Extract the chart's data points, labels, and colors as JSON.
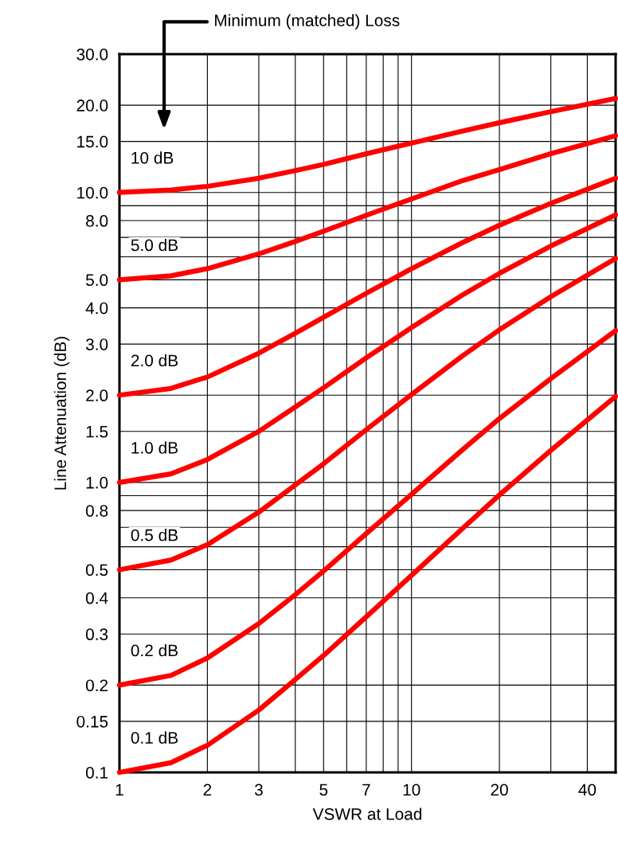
{
  "chart_data": {
    "type": "line",
    "xlabel": "VSWR at Load",
    "ylabel": "Line Attenuation (dB)",
    "annotations": [
      "Minimum (matched) Loss"
    ],
    "x": [
      1,
      1.5,
      2,
      3,
      4,
      5,
      7,
      10,
      15,
      20,
      30,
      50
    ],
    "series": [
      {
        "name": "10 dB",
        "color": "#ff0000",
        "values": [
          10,
          10.2,
          10.5,
          11.2,
          11.9,
          12.5,
          13.6,
          14.8,
          16.3,
          17.4,
          19.0,
          21.1
        ]
      },
      {
        "name": "5.0 dB",
        "color": "#ff0000",
        "values": [
          5,
          5.16,
          5.46,
          6.14,
          6.78,
          7.35,
          8.34,
          9.5,
          11.0,
          12.0,
          13.6,
          15.7
        ]
      },
      {
        "name": "2.0 dB",
        "color": "#ff0000",
        "values": [
          2,
          2.11,
          2.31,
          2.79,
          3.27,
          3.71,
          4.49,
          5.46,
          6.73,
          7.71,
          9.17,
          11.2
        ]
      },
      {
        "name": "1.0 dB",
        "color": "#ff0000",
        "values": [
          1,
          1.07,
          1.2,
          1.5,
          1.82,
          2.12,
          2.69,
          3.42,
          4.44,
          5.26,
          6.54,
          8.37
        ]
      },
      {
        "name": "0.5 dB",
        "color": "#ff0000",
        "values": [
          0.5,
          0.54,
          0.61,
          0.79,
          0.98,
          1.16,
          1.52,
          2.01,
          2.74,
          3.36,
          4.37,
          5.92
        ]
      },
      {
        "name": "0.2 dB",
        "color": "#ff0000",
        "values": [
          0.2,
          0.216,
          0.248,
          0.326,
          0.41,
          0.495,
          0.666,
          0.91,
          1.3,
          1.66,
          2.28,
          3.34
        ]
      },
      {
        "name": "0.1 dB",
        "color": "#ff0000",
        "values": [
          0.1,
          0.108,
          0.124,
          0.164,
          0.209,
          0.253,
          0.344,
          0.478,
          0.696,
          0.905,
          1.29,
          1.98
        ]
      }
    ],
    "log": "xy",
    "xlim": [
      1,
      50
    ],
    "xticks": [
      1,
      2,
      3,
      {
        "value": 4,
        "label": null
      },
      5,
      {
        "value": 6,
        "label": null
      },
      7,
      {
        "value": 8,
        "label": null
      },
      {
        "value": 9,
        "label": null
      },
      10,
      20,
      {
        "value": 30,
        "label": null
      },
      40
    ],
    "ylim": [
      0.1,
      30
    ],
    "yticks": [
      0.1,
      0.15,
      0.2,
      0.3,
      0.4,
      0.5,
      {
        "value": 0.6,
        "label": null
      },
      {
        "value": 0.7,
        "label": null
      },
      0.8,
      {
        "value": 0.9,
        "label": null
      },
      {
        "value": 1,
        "label": "1.0"
      },
      1.5,
      {
        "value": 2,
        "label": "2.0"
      },
      {
        "value": 3,
        "label": "3.0"
      },
      {
        "value": 4,
        "label": "4.0"
      },
      {
        "value": 5,
        "label": "5.0"
      },
      {
        "value": 6,
        "label": null
      },
      {
        "value": 7,
        "label": null
      },
      {
        "value": 8,
        "label": "8.0"
      },
      {
        "value": 9,
        "label": null
      },
      {
        "value": 10,
        "label": "10.0"
      },
      {
        "value": 15,
        "label": "15.0"
      },
      {
        "value": 20,
        "label": "20.0"
      },
      {
        "value": 30,
        "label": "30.0"
      }
    ],
    "grid": true,
    "legend": false,
    "marker": "none",
    "line_style": "solid"
  }
}
